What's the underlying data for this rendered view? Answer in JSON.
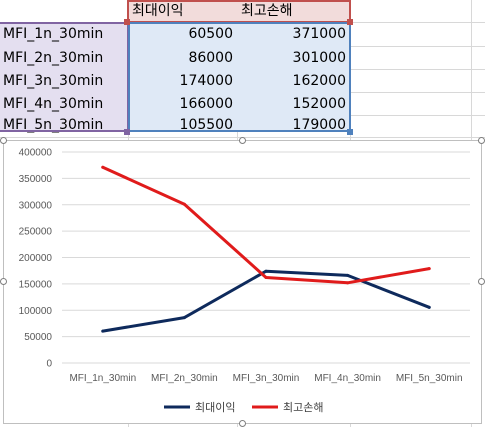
{
  "table": {
    "headers": [
      "최대이익",
      "최고손해"
    ],
    "rows": [
      {
        "label": "MFI_1n_30min",
        "v1": "60500",
        "v2": "371000"
      },
      {
        "label": "MFI_2n_30min",
        "v1": "86000",
        "v2": "301000"
      },
      {
        "label": "MFI_3n_30min",
        "v1": "174000",
        "v2": "162000"
      },
      {
        "label": "MFI_4n_30min",
        "v1": "166000",
        "v2": "152000"
      },
      {
        "label": "MFI_5n_30min",
        "v1": "105500",
        "v2": "179000"
      }
    ]
  },
  "colors": {
    "series1": "#0e2a5c",
    "series2": "#e01b1b",
    "header_ref": "#c0504d",
    "label_ref": "#8064a2",
    "value_ref": "#4f81bd"
  },
  "chart_data": {
    "type": "line",
    "categories": [
      "MFI_1n_30min",
      "MFI_2n_30min",
      "MFI_3n_30min",
      "MFI_4n_30min",
      "MFI_5n_30min"
    ],
    "series": [
      {
        "name": "최대이익",
        "values": [
          60500,
          86000,
          174000,
          166000,
          105500
        ]
      },
      {
        "name": "최고손해",
        "values": [
          371000,
          301000,
          162000,
          152000,
          179000
        ]
      }
    ],
    "ylim": [
      0,
      400000
    ],
    "yticks": [
      "0",
      "50000",
      "100000",
      "150000",
      "200000",
      "250000",
      "300000",
      "350000",
      "400000"
    ],
    "grid": true,
    "legend": "bottom"
  }
}
